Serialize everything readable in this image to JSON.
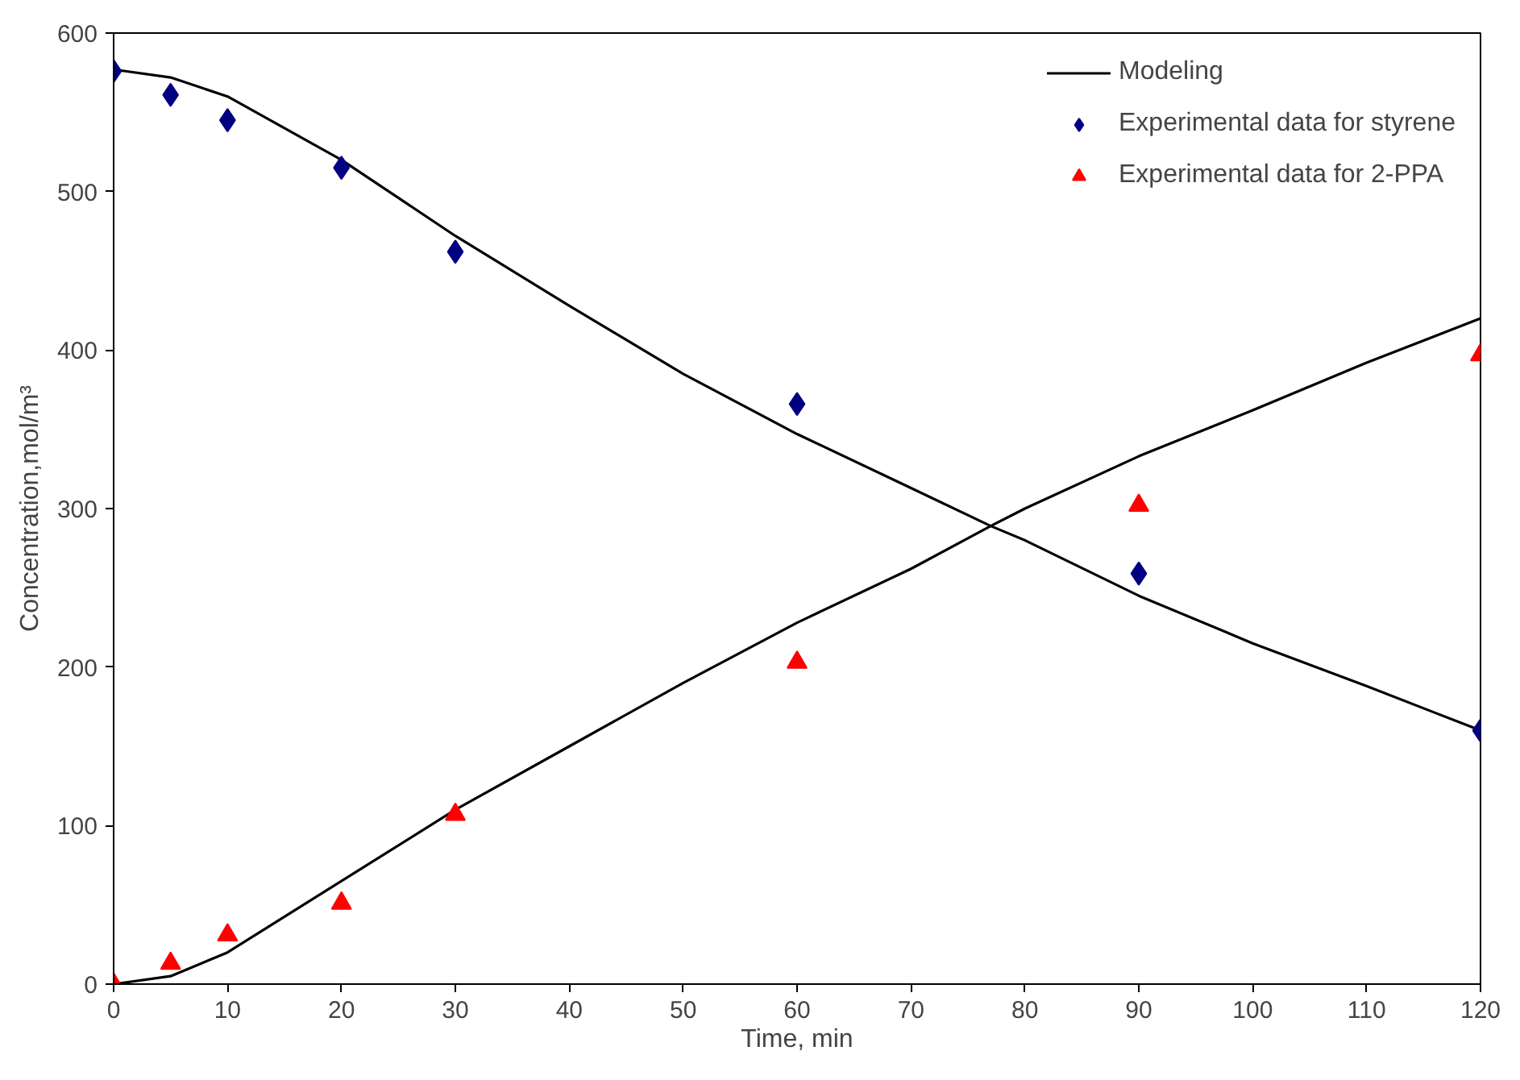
{
  "chart_data": {
    "type": "scatter",
    "xlabel": "Time, min",
    "ylabel": "Concentration,mol/m³",
    "xlim": [
      0,
      120
    ],
    "ylim": [
      0,
      600
    ],
    "xticks": [
      0,
      10,
      20,
      30,
      40,
      50,
      60,
      70,
      80,
      90,
      100,
      110,
      120
    ],
    "yticks": [
      0,
      100,
      200,
      300,
      400,
      500,
      600
    ],
    "grid": false,
    "legend": "top right",
    "series": [
      {
        "name": "Modeling",
        "type": "line",
        "marker": "none",
        "line_style": "solid",
        "color": "#000000",
        "x": [
          0,
          5,
          10,
          20,
          30,
          40,
          50,
          60,
          70,
          77,
          80,
          90,
          100,
          110,
          120
        ],
        "values": [
          577,
          572,
          560,
          520,
          472,
          428,
          385,
          347,
          313,
          289,
          280,
          245,
          215,
          188,
          160
        ]
      },
      {
        "type": "line",
        "marker": "none",
        "line_style": "solid",
        "color": "#000000",
        "x": [
          0,
          5,
          10,
          20,
          30,
          40,
          50,
          60,
          70,
          77,
          80,
          90,
          100,
          110,
          120
        ],
        "values": [
          0,
          5,
          20,
          65,
          110,
          150,
          190,
          228,
          262,
          289,
          300,
          333,
          362,
          392,
          420
        ]
      },
      {
        "name": "Experimental data for styrene",
        "marker": "diamond",
        "color": "#000080",
        "x": [
          0,
          5,
          10,
          20,
          30,
          60,
          90,
          120
        ],
        "values": [
          576,
          561,
          545,
          515,
          462,
          366,
          259,
          160
        ]
      },
      {
        "name": "Experimental data for 2-PPA",
        "marker": "triangle",
        "color": "#ff0000",
        "x": [
          0,
          5,
          10,
          20,
          30,
          60,
          90,
          120
        ],
        "values": [
          0,
          13,
          31,
          51,
          107,
          203,
          302,
          397
        ]
      }
    ]
  }
}
